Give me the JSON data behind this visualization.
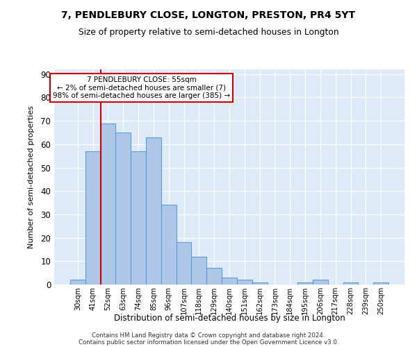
{
  "title1": "7, PENDLEBURY CLOSE, LONGTON, PRESTON, PR4 5YT",
  "title2": "Size of property relative to semi-detached houses in Longton",
  "xlabel": "Distribution of semi-detached houses by size in Longton",
  "ylabel": "Number of semi-detached properties",
  "categories": [
    "30sqm",
    "41sqm",
    "52sqm",
    "63sqm",
    "74sqm",
    "85sqm",
    "96sqm",
    "107sqm",
    "118sqm",
    "129sqm",
    "140sqm",
    "151sqm",
    "162sqm",
    "173sqm",
    "184sqm",
    "195sqm",
    "206sqm",
    "217sqm",
    "228sqm",
    "239sqm",
    "250sqm"
  ],
  "values": [
    2,
    57,
    69,
    65,
    57,
    63,
    34,
    18,
    12,
    7,
    3,
    2,
    1,
    0,
    0,
    1,
    2,
    0,
    1,
    0,
    1
  ],
  "bar_color": "#aec6e8",
  "bar_edge_color": "#5a9fd4",
  "vline_x": 1.5,
  "vline_color": "#cc0000",
  "annotation_text": "7 PENDLEBURY CLOSE: 55sqm\n← 2% of semi-detached houses are smaller (7)\n98% of semi-detached houses are larger (385) →",
  "annotation_box_color": "white",
  "annotation_box_edge_color": "#cc0000",
  "ylim": [
    0,
    92
  ],
  "background_color": "#deeaf7",
  "footer1": "Contains HM Land Registry data © Crown copyright and database right 2024.",
  "footer2": "Contains public sector information licensed under the Open Government Licence v3.0."
}
